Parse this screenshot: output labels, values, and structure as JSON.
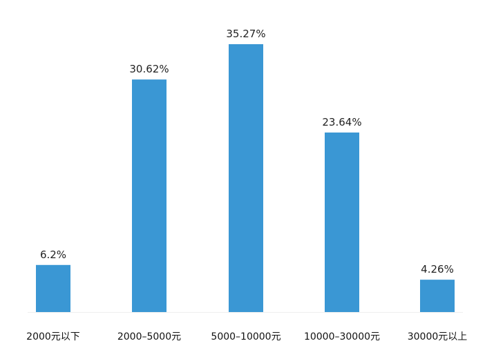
{
  "chart_data": {
    "type": "bar",
    "categories": [
      "2000元以下",
      "2000–5000元",
      "5000–10000元",
      "10000–30000元",
      "30000元以上"
    ],
    "values": [
      6.2,
      30.62,
      35.27,
      23.64,
      4.26
    ],
    "value_labels": [
      "6.2%",
      "30.62%",
      "35.27%",
      "23.64%",
      "4.26%"
    ],
    "title": "",
    "xlabel": "",
    "ylabel": "",
    "ylim": [
      0,
      35.27
    ],
    "grid": false,
    "legend": "none",
    "bar_color": "#3a97d4",
    "baseline_color": "#eeeeee"
  }
}
